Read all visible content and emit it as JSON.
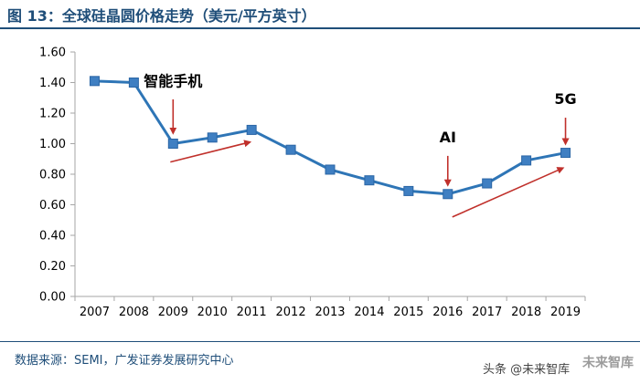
{
  "figure": {
    "title": "图 13：全球硅晶圆价格走势（美元/平方英寸）",
    "source": "数据来源：SEMI，广发证券发展研究中心"
  },
  "watermark": {
    "prefix": "头条",
    "handle": "@未来智库",
    "logo_text": "未来智库"
  },
  "colors": {
    "title": "#1f4e79",
    "line": "#2e75b6",
    "marker": "#3f7fc2",
    "annotation_arrow": "#c0302b",
    "axis": "#a6a6a6"
  },
  "chart_data": {
    "type": "line",
    "title": "",
    "xlabel": "",
    "ylabel": "",
    "categories": [
      "2007",
      "2008",
      "2009",
      "2010",
      "2011",
      "2012",
      "2013",
      "2014",
      "2015",
      "2016",
      "2017",
      "2018",
      "2019"
    ],
    "series": [
      {
        "values": [
          1.41,
          1.4,
          1.0,
          1.04,
          1.09,
          0.96,
          0.83,
          0.76,
          0.69,
          0.67,
          0.74,
          0.89,
          0.94
        ]
      }
    ],
    "ylim": [
      0,
      1.6
    ],
    "yticks": [
      "0.00",
      "0.20",
      "0.40",
      "0.60",
      "0.80",
      "1.00",
      "1.20",
      "1.40",
      "1.60"
    ],
    "grid": false,
    "legend": "none",
    "annotations": [
      {
        "text": "智能手机",
        "x": "2009"
      },
      {
        "text": "AI",
        "x": "2016"
      },
      {
        "text": "5G",
        "x": "2019"
      }
    ]
  }
}
